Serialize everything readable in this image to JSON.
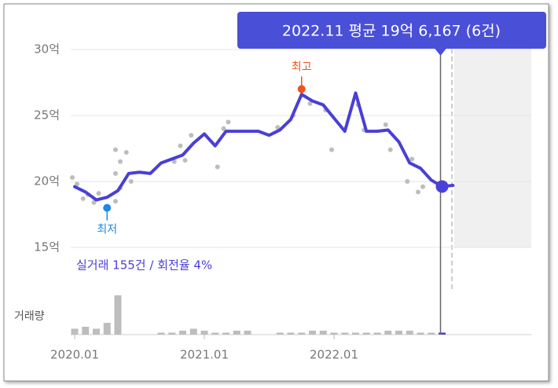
{
  "chart_data": {
    "type": "line",
    "categories": [
      "2020.01",
      "2020.02",
      "2020.03",
      "2020.04",
      "2020.05",
      "2020.06",
      "2020.07",
      "2020.08",
      "2020.09",
      "2020.10",
      "2020.11",
      "2020.12",
      "2021.01",
      "2021.02",
      "2021.03",
      "2021.04",
      "2021.05",
      "2021.06",
      "2021.07",
      "2021.08",
      "2021.09",
      "2021.10",
      "2021.11",
      "2021.12",
      "2022.01",
      "2022.02",
      "2022.03",
      "2022.04",
      "2022.05",
      "2022.06",
      "2022.07",
      "2022.08",
      "2022.09",
      "2022.10",
      "2022.11",
      "2022.12"
    ],
    "series": [
      {
        "color": "#4a3fd6",
        "values": [
          19.6,
          19.2,
          18.6,
          18.8,
          19.3,
          20.6,
          20.7,
          20.6,
          21.4,
          21.7,
          22.0,
          22.9,
          23.6,
          22.7,
          23.8,
          23.8,
          23.8,
          23.8,
          23.5,
          23.9,
          24.7,
          26.6,
          26.1,
          25.8,
          24.8,
          23.8,
          26.7,
          23.8,
          23.8,
          23.9,
          23.0,
          21.4,
          21.0,
          20.1,
          19.6167,
          19.7
        ]
      },
      {
        "type": "bar",
        "axis": "y2",
        "color": "#bdbdbd",
        "highlight_color": "#4a3fd6",
        "values": [
          3,
          4,
          3,
          6,
          20,
          0,
          0,
          0,
          1,
          1,
          2,
          3,
          2,
          1,
          1,
          2,
          2,
          0,
          0,
          1,
          1,
          1,
          2,
          2,
          1,
          1,
          1,
          1,
          1,
          2,
          2,
          2,
          1,
          1,
          1,
          0
        ]
      }
    ],
    "points": {
      "type": "scatter",
      "color": "#bdbdbd",
      "x": [
        "2020.01",
        "2020.01",
        "2020.02",
        "2020.02",
        "2020.03",
        "2020.03",
        "2020.05",
        "2020.05",
        "2020.05",
        "2020.05",
        "2020.05",
        "2020.06",
        "2020.06",
        "2020.10",
        "2020.11",
        "2020.11",
        "2020.12",
        "2021.02",
        "2021.03",
        "2021.03",
        "2021.08",
        "2021.09",
        "2021.11",
        "2021.12",
        "2022.01",
        "2022.03",
        "2022.04",
        "2022.06",
        "2022.06",
        "2022.08",
        "2022.08",
        "2022.09",
        "2022.09",
        "2022.11"
      ],
      "values": [
        20.3,
        19.8,
        18.7,
        19.0,
        18.4,
        19.1,
        18.5,
        19.5,
        20.6,
        21.5,
        22.4,
        20.0,
        22.2,
        21.5,
        22.7,
        21.6,
        23.5,
        21.1,
        24.0,
        24.5,
        24.1,
        25.0,
        25.9,
        25.4,
        22.4,
        25.8,
        23.9,
        22.4,
        24.3,
        21.7,
        20.0,
        19.6,
        19.2,
        19.4
      ]
    },
    "highest": {
      "label": "최고",
      "x": "2021.10",
      "value": 27.0,
      "color": "#f4511e"
    },
    "lowest": {
      "label": "최저",
      "x": "2020.04",
      "value": 18.0,
      "color": "#1e88e5"
    },
    "tooltip": {
      "text": "2022.11 평균 19억 6,167 (6건)",
      "x": "2022.11"
    },
    "summary": "실거래 155건 / 회전율 4%",
    "volume_label": "거래량",
    "ylim": [
      15,
      30
    ],
    "yticks": [
      {
        "value": 15,
        "label": "15억"
      },
      {
        "value": 20,
        "label": "20억"
      },
      {
        "value": 25,
        "label": "25억"
      },
      {
        "value": 30,
        "label": "30억"
      }
    ],
    "y2lim": [
      0,
      22
    ],
    "xticks": [
      "2020.01",
      "2021.01",
      "2022.01"
    ],
    "grid": true
  }
}
